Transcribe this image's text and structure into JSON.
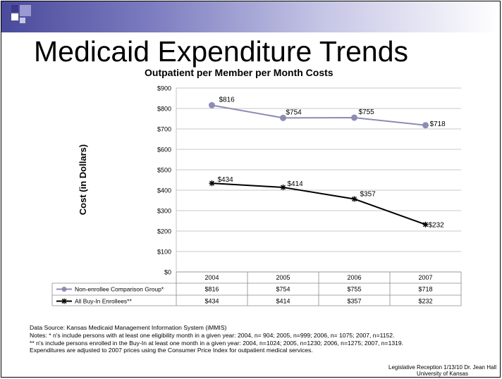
{
  "slide_title": "Medicaid Expenditure Trends",
  "chart_data": {
    "type": "line",
    "title": "Outpatient per Member per Month Costs",
    "ylabel": "Cost (in Dollars)",
    "xlabel": "",
    "categories": [
      "2004",
      "2005",
      "2006",
      "2007"
    ],
    "ylim": [
      0,
      900
    ],
    "yticks": [
      0,
      100,
      200,
      300,
      400,
      500,
      600,
      700,
      800,
      900
    ],
    "ytick_labels": [
      "$0",
      "$100",
      "$200",
      "$300",
      "$400",
      "$500",
      "$600",
      "$700",
      "$800",
      "$900"
    ],
    "grid": true,
    "data_table": true,
    "series": [
      {
        "name": "Non-enrollee Comparison Group*",
        "values": [
          816,
          754,
          755,
          718
        ],
        "labels": [
          "$816",
          "$754",
          "$755",
          "$718"
        ],
        "color": "#8c8cb4",
        "marker": "circle"
      },
      {
        "name": "All Buy-In Enrollees**",
        "values": [
          434,
          414,
          357,
          232
        ],
        "labels": [
          "$434",
          "$414",
          "$357",
          "$232"
        ],
        "color": "#000000",
        "marker": "star"
      }
    ]
  },
  "notes": [
    "Data Source: Kansas Medicaid Management Information System (iMMIS)",
    "Notes: * n's include persons with at least one eligibility month in a given year: 2004, n= 904; 2005, n=999; 2006, n= 1075; 2007, n=1152.",
    "** n's include persons enrolled in the Buy-In at least one month in a given year: 2004, n=1024; 2005, n=1230; 2006, n=1275; 2007, n=1319.",
    "Expenditures are adjusted to 2007 prices using the Consumer Price Index for outpatient medical services."
  ],
  "footer": {
    "line1": "Legislative Reception 1/13/10  Dr. Jean Hall",
    "line2": "University of Kansas"
  },
  "colors": {
    "header_dark": "#4a4a9c",
    "header_light": "#c6c6e6",
    "accent_square_dark": "#3a3a8c",
    "accent_square_light": "#9a9ad0"
  }
}
